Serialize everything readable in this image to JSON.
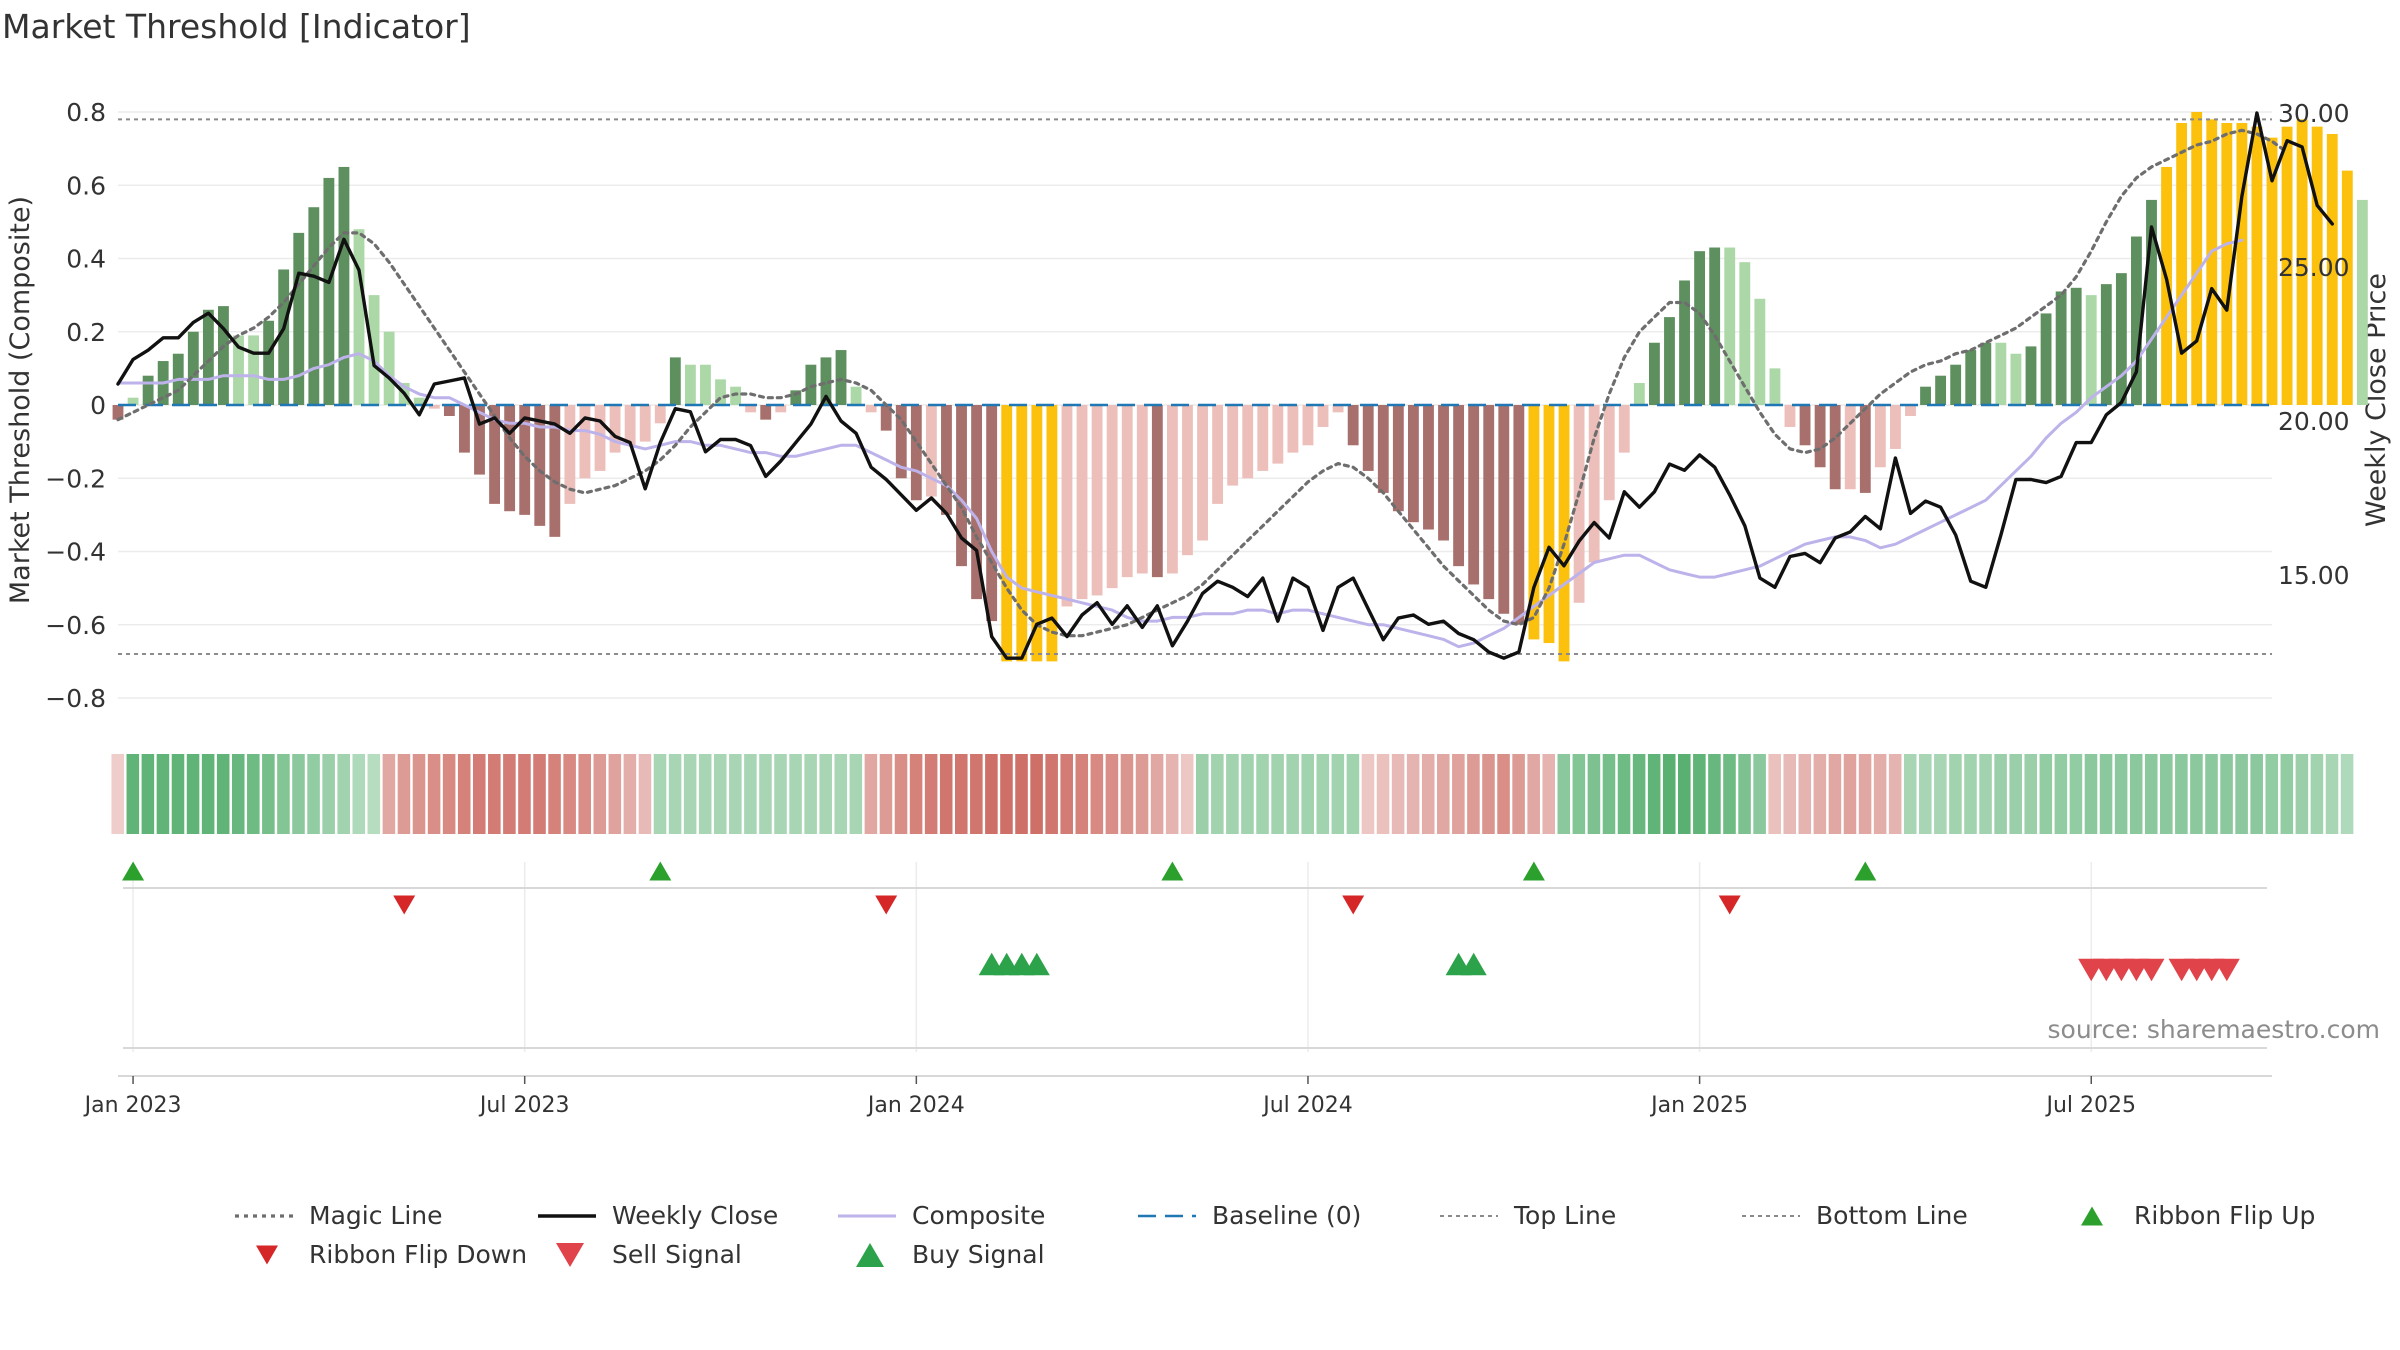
{
  "chart_data": {
    "type": "bar",
    "title": "Market Threshold [Indicator]",
    "source": "source: sharemaestro.com",
    "y_left": {
      "label": "Market Threshold (Composite)",
      "range": [
        -0.9,
        0.9
      ],
      "ticks": [
        0.8,
        0.6,
        0.4,
        0.2,
        0,
        -0.2,
        -0.4,
        -0.6,
        -0.8
      ],
      "tick_labels": [
        "0.8",
        "0.6",
        "0.4",
        "0.2",
        "0",
        "−0.2",
        "−0.4",
        "−0.6",
        "−0.8"
      ]
    },
    "y_right": {
      "label": "Weekly Close Price",
      "range": [
        9.5,
        31.5
      ],
      "ticks": [
        30,
        25,
        20,
        15
      ],
      "tick_labels": [
        "30.00",
        "25.00",
        "20.00",
        "15.00"
      ]
    },
    "x": {
      "start_week": 0,
      "end_week": 143,
      "ticks": [
        1,
        27,
        53,
        79,
        105,
        131
      ],
      "tick_labels": [
        "Jan 2023",
        "Jul 2023",
        "Jan 2024",
        "Jul 2024",
        "Jan 2025",
        "Jul 2025"
      ]
    },
    "top_line": 0.78,
    "bottom_line": -0.68,
    "baseline": 0,
    "bar_colors": {
      "pos_strong": "#5e8f5e",
      "pos_weak": "#acd8a8",
      "neg_strong": "#a8706c",
      "neg_weak": "#ecbfbb",
      "extreme": "#fcc10d"
    },
    "line_colors": {
      "magic": "#6e6e6e",
      "close": "#111111",
      "composite": "#bdb2ea",
      "baseline": "#1f77b4",
      "thresholds": "#8a8a8a"
    },
    "marker_colors": {
      "ribbon_up": "#2ca02c",
      "ribbon_down": "#d62728",
      "buy": "#2ca24a",
      "sell": "#e0434a"
    },
    "bars": [
      -0.04,
      0.02,
      0.08,
      0.12,
      0.14,
      0.2,
      0.26,
      0.27,
      0.19,
      0.19,
      0.23,
      0.37,
      0.47,
      0.54,
      0.62,
      0.65,
      0.48,
      0.3,
      0.2,
      0.06,
      0.02,
      -0.01,
      -0.03,
      -0.13,
      -0.19,
      -0.27,
      -0.29,
      -0.3,
      -0.33,
      -0.36,
      -0.27,
      -0.2,
      -0.18,
      -0.13,
      -0.11,
      -0.1,
      -0.05,
      0.13,
      0.11,
      0.11,
      0.07,
      0.05,
      -0.02,
      -0.04,
      -0.02,
      0.04,
      0.11,
      0.13,
      0.15,
      0.05,
      -0.02,
      -0.07,
      -0.2,
      -0.26,
      -0.25,
      -0.3,
      -0.44,
      -0.53,
      -0.59,
      -0.7,
      -0.7,
      -0.7,
      -0.7,
      -0.55,
      -0.53,
      -0.52,
      -0.5,
      -0.47,
      -0.46,
      -0.47,
      -0.46,
      -0.41,
      -0.37,
      -0.27,
      -0.22,
      -0.2,
      -0.18,
      -0.16,
      -0.13,
      -0.11,
      -0.06,
      -0.02,
      -0.11,
      -0.18,
      -0.24,
      -0.29,
      -0.32,
      -0.34,
      -0.37,
      -0.44,
      -0.49,
      -0.53,
      -0.57,
      -0.6,
      -0.64,
      -0.65,
      -0.7,
      -0.54,
      -0.43,
      -0.26,
      -0.13,
      0.06,
      0.17,
      0.24,
      0.34,
      0.42,
      0.43,
      0.43,
      0.39,
      0.29,
      0.1,
      -0.06,
      -0.11,
      -0.17,
      -0.23,
      -0.23,
      -0.24,
      -0.17,
      -0.12,
      -0.03,
      0.05,
      0.08,
      0.11,
      0.15,
      0.17,
      0.17,
      0.14,
      0.16,
      0.25,
      0.31,
      0.32,
      0.3,
      0.33,
      0.36,
      0.46,
      0.56,
      0.65,
      0.77,
      0.8,
      0.78,
      0.77,
      0.77,
      0.76,
      0.73,
      0.76,
      0.78,
      0.76,
      0.74,
      0.64,
      0.56
    ],
    "close": [
      21.2,
      22.0,
      22.3,
      22.7,
      22.7,
      23.2,
      23.5,
      23.0,
      22.4,
      22.2,
      22.2,
      23.0,
      24.8,
      24.7,
      24.5,
      25.9,
      24.9,
      21.8,
      21.4,
      20.9,
      20.2,
      21.2,
      21.3,
      21.4,
      19.9,
      20.1,
      19.6,
      20.1,
      20.0,
      19.9,
      19.6,
      20.1,
      20.0,
      19.5,
      19.3,
      17.8,
      19.3,
      20.4,
      20.3,
      19.0,
      19.4,
      19.4,
      19.2,
      18.2,
      18.7,
      19.3,
      19.9,
      20.8,
      20.0,
      19.6,
      18.5,
      18.1,
      17.6,
      17.1,
      17.5,
      17.0,
      16.2,
      15.8,
      13.0,
      12.3,
      12.3,
      13.4,
      13.6,
      13.0,
      13.7,
      14.1,
      13.4,
      14.0,
      13.3,
      14.0,
      12.7,
      13.5,
      14.4,
      14.8,
      14.6,
      14.3,
      14.9,
      13.5,
      14.9,
      14.6,
      13.2,
      14.6,
      14.9,
      13.9,
      12.9,
      13.6,
      13.7,
      13.4,
      13.5,
      13.1,
      12.9,
      12.5,
      12.3,
      12.5,
      14.6,
      15.9,
      15.3,
      16.1,
      16.7,
      16.2,
      17.7,
      17.2,
      17.7,
      18.6,
      18.4,
      18.9,
      18.5,
      17.6,
      16.6,
      14.9,
      14.6,
      15.6,
      15.7,
      15.4,
      16.2,
      16.4,
      16.9,
      16.5,
      18.8,
      17.0,
      17.4,
      17.2,
      16.3,
      14.8,
      14.6,
      16.3,
      18.1,
      18.1,
      18.0,
      18.2,
      19.3,
      19.3,
      20.2,
      20.6,
      21.6,
      26.3,
      24.6,
      22.2,
      22.6,
      24.3,
      23.6,
      27.3,
      30.0,
      27.8,
      29.1,
      28.9,
      27.0,
      26.4
    ],
    "composite": [
      0.06,
      0.06,
      0.06,
      0.06,
      0.07,
      0.07,
      0.07,
      0.08,
      0.08,
      0.08,
      0.07,
      0.07,
      0.08,
      0.1,
      0.11,
      0.13,
      0.14,
      0.12,
      0.08,
      0.05,
      0.03,
      0.02,
      0.02,
      0.0,
      -0.02,
      -0.04,
      -0.05,
      -0.05,
      -0.06,
      -0.06,
      -0.07,
      -0.07,
      -0.08,
      -0.1,
      -0.11,
      -0.12,
      -0.11,
      -0.1,
      -0.1,
      -0.11,
      -0.11,
      -0.12,
      -0.13,
      -0.13,
      -0.14,
      -0.14,
      -0.13,
      -0.12,
      -0.11,
      -0.11,
      -0.13,
      -0.15,
      -0.17,
      -0.18,
      -0.2,
      -0.22,
      -0.26,
      -0.31,
      -0.4,
      -0.47,
      -0.5,
      -0.51,
      -0.52,
      -0.53,
      -0.54,
      -0.55,
      -0.56,
      -0.58,
      -0.59,
      -0.59,
      -0.58,
      -0.58,
      -0.57,
      -0.57,
      -0.57,
      -0.56,
      -0.56,
      -0.57,
      -0.56,
      -0.56,
      -0.57,
      -0.58,
      -0.59,
      -0.6,
      -0.6,
      -0.61,
      -0.62,
      -0.63,
      -0.64,
      -0.66,
      -0.65,
      -0.63,
      -0.61,
      -0.58,
      -0.55,
      -0.52,
      -0.49,
      -0.46,
      -0.43,
      -0.42,
      -0.41,
      -0.41,
      -0.43,
      -0.45,
      -0.46,
      -0.47,
      -0.47,
      -0.46,
      -0.45,
      -0.44,
      -0.42,
      -0.4,
      -0.38,
      -0.37,
      -0.36,
      -0.36,
      -0.37,
      -0.39,
      -0.38,
      -0.36,
      -0.34,
      -0.32,
      -0.3,
      -0.28,
      -0.26,
      -0.22,
      -0.18,
      -0.14,
      -0.09,
      -0.05,
      -0.02,
      0.02,
      0.05,
      0.08,
      0.12,
      0.18,
      0.24,
      0.3,
      0.36,
      0.42,
      0.44,
      0.45
    ],
    "magic": [
      -0.04,
      -0.02,
      0.0,
      0.02,
      0.04,
      0.08,
      0.12,
      0.16,
      0.19,
      0.21,
      0.24,
      0.28,
      0.33,
      0.38,
      0.43,
      0.47,
      0.47,
      0.44,
      0.39,
      0.33,
      0.27,
      0.21,
      0.15,
      0.09,
      0.03,
      -0.03,
      -0.09,
      -0.14,
      -0.18,
      -0.21,
      -0.23,
      -0.24,
      -0.23,
      -0.22,
      -0.2,
      -0.18,
      -0.15,
      -0.11,
      -0.06,
      -0.02,
      0.02,
      0.03,
      0.03,
      0.02,
      0.02,
      0.03,
      0.05,
      0.06,
      0.07,
      0.06,
      0.04,
      0.0,
      -0.04,
      -0.1,
      -0.16,
      -0.22,
      -0.28,
      -0.36,
      -0.43,
      -0.5,
      -0.56,
      -0.6,
      -0.62,
      -0.63,
      -0.63,
      -0.62,
      -0.61,
      -0.6,
      -0.58,
      -0.56,
      -0.54,
      -0.52,
      -0.49,
      -0.45,
      -0.41,
      -0.37,
      -0.33,
      -0.29,
      -0.25,
      -0.21,
      -0.18,
      -0.16,
      -0.17,
      -0.2,
      -0.24,
      -0.29,
      -0.34,
      -0.39,
      -0.44,
      -0.48,
      -0.52,
      -0.56,
      -0.59,
      -0.6,
      -0.58,
      -0.5,
      -0.38,
      -0.24,
      -0.09,
      0.03,
      0.13,
      0.2,
      0.24,
      0.28,
      0.28,
      0.25,
      0.19,
      0.12,
      0.05,
      -0.02,
      -0.08,
      -0.12,
      -0.13,
      -0.12,
      -0.09,
      -0.05,
      -0.01,
      0.03,
      0.06,
      0.09,
      0.11,
      0.12,
      0.14,
      0.15,
      0.17,
      0.19,
      0.21,
      0.24,
      0.27,
      0.3,
      0.35,
      0.42,
      0.5,
      0.57,
      0.62,
      0.65,
      0.67,
      0.69,
      0.71,
      0.72,
      0.74,
      0.75,
      0.74,
      0.72,
      0.69
    ],
    "ribbon": [
      -0.15,
      0.85,
      0.85,
      0.85,
      0.85,
      0.85,
      0.85,
      0.85,
      0.8,
      0.75,
      0.7,
      0.6,
      0.55,
      0.5,
      0.45,
      0.4,
      0.3,
      0.25,
      -0.45,
      -0.55,
      -0.6,
      -0.65,
      -0.7,
      -0.75,
      -0.8,
      -0.8,
      -0.8,
      -0.8,
      -0.8,
      -0.75,
      -0.7,
      -0.65,
      -0.55,
      -0.5,
      -0.4,
      -0.3,
      0.35,
      0.35,
      0.35,
      0.35,
      0.35,
      0.35,
      0.35,
      0.35,
      0.35,
      0.35,
      0.35,
      0.35,
      0.35,
      0.35,
      -0.45,
      -0.55,
      -0.65,
      -0.75,
      -0.8,
      -0.85,
      -0.85,
      -0.85,
      -0.9,
      -0.9,
      -0.9,
      -0.9,
      -0.85,
      -0.8,
      -0.75,
      -0.7,
      -0.65,
      -0.6,
      -0.55,
      -0.45,
      -0.35,
      -0.2,
      0.45,
      0.4,
      0.4,
      0.4,
      0.4,
      0.4,
      0.4,
      0.4,
      0.4,
      0.4,
      0.4,
      -0.2,
      -0.25,
      -0.3,
      -0.35,
      -0.4,
      -0.45,
      -0.5,
      -0.55,
      -0.6,
      -0.65,
      -0.55,
      -0.45,
      -0.35,
      0.55,
      0.6,
      0.65,
      0.7,
      0.75,
      0.8,
      0.85,
      0.9,
      0.9,
      0.85,
      0.8,
      0.75,
      0.65,
      0.55,
      -0.25,
      -0.3,
      -0.35,
      -0.4,
      -0.45,
      -0.5,
      -0.45,
      -0.4,
      -0.35,
      0.35,
      0.35,
      0.35,
      0.4,
      0.4,
      0.4,
      0.45,
      0.45,
      0.45,
      0.5,
      0.5,
      0.5,
      0.55,
      0.55,
      0.55,
      0.55,
      0.55,
      0.55,
      0.55,
      0.55,
      0.55,
      0.55,
      0.55,
      0.55,
      0.5,
      0.5,
      0.45,
      0.4,
      0.35,
      0.3
    ],
    "ribbon_flip_up_weeks": [
      1,
      36,
      70,
      94,
      116
    ],
    "ribbon_flip_down_weeks": [
      19,
      51,
      82,
      107
    ],
    "buy_signal_weeks": [
      58,
      59,
      60,
      61,
      89,
      90
    ],
    "sell_signal_weeks": [
      131,
      132,
      133,
      134,
      135,
      137,
      138,
      139,
      140
    ],
    "legend": [
      {
        "label": "Magic Line",
        "kind": "dotted-line"
      },
      {
        "label": "Weekly Close",
        "kind": "solid-line"
      },
      {
        "label": "Composite",
        "kind": "lavender-line"
      },
      {
        "label": "Baseline (0)",
        "kind": "dashed-line"
      },
      {
        "label": "Top Line",
        "kind": "thin-dashed"
      },
      {
        "label": "Bottom Line",
        "kind": "thin-dashed"
      },
      {
        "label": "Ribbon Flip Up",
        "kind": "triangle-up-small"
      },
      {
        "label": "Ribbon Flip Down",
        "kind": "triangle-down-small"
      },
      {
        "label": "Sell Signal",
        "kind": "triangle-down-large"
      },
      {
        "label": "Buy Signal",
        "kind": "triangle-up-large"
      }
    ]
  }
}
